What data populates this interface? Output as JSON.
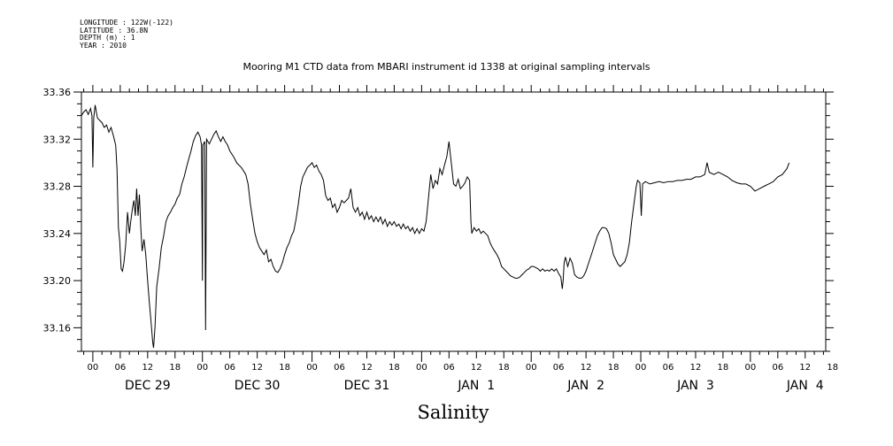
{
  "meta_lines": [
    "LONGITUDE : 122W(-122)",
    "LATITUDE : 36.8N",
    "DEPTH (m) : 1",
    "YEAR : 2010"
  ],
  "chart_data": {
    "type": "line",
    "title": "Mooring M1 CTD data from MBARI instrument id 1338 at original sampling intervals",
    "xlabel": "Salinity",
    "ylabel": "",
    "ylim": [
      33.14,
      33.36
    ],
    "xlim_hours": [
      -2.5,
      160.5
    ],
    "yticks": [
      "33.36",
      "33.32",
      "33.28",
      "33.24",
      "33.20",
      "33.16"
    ],
    "ytick_values": [
      33.36,
      33.32,
      33.28,
      33.24,
      33.2,
      33.16
    ],
    "x_hour_ticks": [
      "00",
      "06",
      "12",
      "18",
      "00",
      "06",
      "12",
      "18",
      "00",
      "06",
      "12",
      "18",
      "00",
      "06",
      "12",
      "18",
      "00",
      "06",
      "12",
      "18",
      "00",
      "06",
      "12",
      "18",
      "00",
      "06",
      "12",
      "18"
    ],
    "x_day_labels": [
      "DEC 29",
      "DEC 30",
      "DEC 31",
      "JAN  1",
      "JAN  2",
      "JAN  3",
      "JAN  4"
    ],
    "grid": false,
    "series": [
      {
        "points": [
          [
            -2.5,
            33.34
          ],
          [
            -2.0,
            33.343
          ],
          [
            -1.5,
            33.345
          ],
          [
            -1.0,
            33.341
          ],
          [
            -0.5,
            33.346
          ],
          [
            -0.2,
            33.34
          ],
          [
            0,
            33.296
          ],
          [
            0.2,
            33.338
          ],
          [
            0.5,
            33.349
          ],
          [
            1.0,
            33.338
          ],
          [
            1.5,
            33.336
          ],
          [
            2.0,
            33.334
          ],
          [
            2.5,
            33.33
          ],
          [
            3.0,
            33.332
          ],
          [
            3.5,
            33.326
          ],
          [
            4.0,
            33.33
          ],
          [
            4.5,
            33.323
          ],
          [
            5.0,
            33.315
          ],
          [
            5.3,
            33.295
          ],
          [
            5.6,
            33.245
          ],
          [
            5.9,
            33.233
          ],
          [
            6.2,
            33.21
          ],
          [
            6.5,
            33.208
          ],
          [
            6.8,
            33.215
          ],
          [
            7.2,
            33.23
          ],
          [
            7.6,
            33.258
          ],
          [
            8.0,
            33.24
          ],
          [
            8.3,
            33.25
          ],
          [
            8.7,
            33.262
          ],
          [
            9.0,
            33.268
          ],
          [
            9.3,
            33.255
          ],
          [
            9.6,
            33.278
          ],
          [
            9.9,
            33.255
          ],
          [
            10.2,
            33.273
          ],
          [
            10.5,
            33.245
          ],
          [
            10.8,
            33.225
          ],
          [
            11.2,
            33.235
          ],
          [
            11.6,
            33.222
          ],
          [
            12.0,
            33.2
          ],
          [
            12.4,
            33.18
          ],
          [
            12.8,
            33.163
          ],
          [
            13.1,
            33.148
          ],
          [
            13.3,
            33.143
          ],
          [
            13.6,
            33.16
          ],
          [
            14.0,
            33.195
          ],
          [
            14.5,
            33.21
          ],
          [
            15.0,
            33.228
          ],
          [
            15.5,
            33.238
          ],
          [
            16.0,
            33.25
          ],
          [
            16.5,
            33.255
          ],
          [
            17.0,
            33.258
          ],
          [
            17.5,
            33.262
          ],
          [
            18.0,
            33.265
          ],
          [
            18.5,
            33.27
          ],
          [
            19.0,
            33.273
          ],
          [
            19.5,
            33.282
          ],
          [
            20.0,
            33.288
          ],
          [
            20.5,
            33.296
          ],
          [
            21.0,
            33.303
          ],
          [
            21.5,
            33.31
          ],
          [
            22.0,
            33.318
          ],
          [
            22.5,
            33.323
          ],
          [
            23.0,
            33.326
          ],
          [
            23.5,
            33.322
          ],
          [
            23.8,
            33.315
          ],
          [
            24.0,
            33.2
          ],
          [
            24.1,
            33.315
          ],
          [
            24.5,
            33.318
          ],
          [
            24.7,
            33.158
          ],
          [
            24.9,
            33.32
          ],
          [
            25.5,
            33.316
          ],
          [
            26.0,
            33.32
          ],
          [
            26.5,
            33.324
          ],
          [
            27.0,
            33.327
          ],
          [
            27.5,
            33.322
          ],
          [
            28.0,
            33.318
          ],
          [
            28.5,
            33.322
          ],
          [
            29.0,
            33.318
          ],
          [
            29.5,
            33.315
          ],
          [
            30.0,
            33.31
          ],
          [
            30.5,
            33.307
          ],
          [
            31.0,
            33.304
          ],
          [
            31.5,
            33.3
          ],
          [
            32.0,
            33.298
          ],
          [
            32.5,
            33.296
          ],
          [
            33.0,
            33.293
          ],
          [
            33.5,
            33.29
          ],
          [
            34.0,
            33.282
          ],
          [
            34.5,
            33.265
          ],
          [
            35.0,
            33.252
          ],
          [
            35.5,
            33.24
          ],
          [
            36.0,
            33.233
          ],
          [
            36.5,
            33.228
          ],
          [
            37.0,
            33.225
          ],
          [
            37.5,
            33.222
          ],
          [
            38.0,
            33.226
          ],
          [
            38.5,
            33.216
          ],
          [
            39.0,
            33.218
          ],
          [
            39.5,
            33.212
          ],
          [
            40.0,
            33.208
          ],
          [
            40.5,
            33.207
          ],
          [
            41.0,
            33.21
          ],
          [
            41.5,
            33.215
          ],
          [
            42.0,
            33.222
          ],
          [
            42.5,
            33.228
          ],
          [
            43.0,
            33.232
          ],
          [
            43.5,
            33.238
          ],
          [
            44.0,
            33.242
          ],
          [
            44.5,
            33.252
          ],
          [
            45.0,
            33.265
          ],
          [
            45.5,
            33.28
          ],
          [
            46.0,
            33.288
          ],
          [
            46.5,
            33.292
          ],
          [
            47.0,
            33.296
          ],
          [
            47.5,
            33.298
          ],
          [
            48.0,
            33.3
          ],
          [
            48.5,
            33.296
          ],
          [
            49.0,
            33.298
          ],
          [
            49.5,
            33.293
          ],
          [
            50.0,
            33.29
          ],
          [
            50.5,
            33.285
          ],
          [
            51.0,
            33.272
          ],
          [
            51.5,
            33.268
          ],
          [
            52.0,
            33.27
          ],
          [
            52.5,
            33.262
          ],
          [
            53.0,
            33.265
          ],
          [
            53.5,
            33.258
          ],
          [
            54.0,
            33.262
          ],
          [
            54.5,
            33.268
          ],
          [
            55.0,
            33.266
          ],
          [
            55.5,
            33.268
          ],
          [
            56.0,
            33.27
          ],
          [
            56.5,
            33.278
          ],
          [
            57.0,
            33.262
          ],
          [
            57.5,
            33.258
          ],
          [
            58.0,
            33.262
          ],
          [
            58.5,
            33.255
          ],
          [
            59.0,
            33.258
          ],
          [
            59.5,
            33.252
          ],
          [
            60.0,
            33.258
          ],
          [
            60.5,
            33.252
          ],
          [
            61.0,
            33.255
          ],
          [
            61.5,
            33.25
          ],
          [
            62.0,
            33.254
          ],
          [
            62.5,
            33.25
          ],
          [
            63.0,
            33.254
          ],
          [
            63.5,
            33.248
          ],
          [
            64.0,
            33.252
          ],
          [
            64.5,
            33.246
          ],
          [
            65.0,
            33.25
          ],
          [
            65.5,
            33.247
          ],
          [
            66.0,
            33.25
          ],
          [
            66.5,
            33.246
          ],
          [
            67.0,
            33.248
          ],
          [
            67.5,
            33.244
          ],
          [
            68.0,
            33.248
          ],
          [
            68.5,
            33.244
          ],
          [
            69.0,
            33.246
          ],
          [
            69.5,
            33.242
          ],
          [
            70.0,
            33.245
          ],
          [
            70.5,
            33.24
          ],
          [
            71.0,
            33.244
          ],
          [
            71.5,
            33.24
          ],
          [
            72.0,
            33.244
          ],
          [
            72.5,
            33.242
          ],
          [
            73.0,
            33.25
          ],
          [
            73.5,
            33.27
          ],
          [
            74.0,
            33.29
          ],
          [
            74.5,
            33.278
          ],
          [
            75.0,
            33.285
          ],
          [
            75.5,
            33.282
          ],
          [
            76.0,
            33.295
          ],
          [
            76.5,
            33.29
          ],
          [
            77.0,
            33.298
          ],
          [
            77.5,
            33.305
          ],
          [
            78.0,
            33.318
          ],
          [
            78.5,
            33.3
          ],
          [
            79.0,
            33.282
          ],
          [
            79.5,
            33.28
          ],
          [
            80.0,
            33.286
          ],
          [
            80.5,
            33.278
          ],
          [
            81.0,
            33.28
          ],
          [
            81.5,
            33.283
          ],
          [
            82.0,
            33.288
          ],
          [
            82.5,
            33.285
          ],
          [
            82.8,
            33.25
          ],
          [
            83.0,
            33.24
          ],
          [
            83.5,
            33.245
          ],
          [
            84.0,
            33.242
          ],
          [
            84.5,
            33.244
          ],
          [
            85.0,
            33.24
          ],
          [
            85.5,
            33.242
          ],
          [
            86.0,
            33.24
          ],
          [
            86.5,
            33.238
          ],
          [
            87.0,
            33.232
          ],
          [
            87.5,
            33.228
          ],
          [
            88.0,
            33.225
          ],
          [
            88.5,
            33.222
          ],
          [
            89.0,
            33.218
          ],
          [
            89.5,
            33.212
          ],
          [
            90.0,
            33.21
          ],
          [
            90.5,
            33.208
          ],
          [
            91.0,
            33.206
          ],
          [
            91.5,
            33.204
          ],
          [
            92.0,
            33.203
          ],
          [
            92.5,
            33.202
          ],
          [
            93.0,
            33.202
          ],
          [
            93.5,
            33.203
          ],
          [
            94.0,
            33.205
          ],
          [
            94.5,
            33.207
          ],
          [
            95.0,
            33.209
          ],
          [
            95.5,
            33.21
          ],
          [
            96.0,
            33.212
          ],
          [
            96.5,
            33.212
          ],
          [
            97.0,
            33.211
          ],
          [
            97.5,
            33.21
          ],
          [
            98.0,
            33.208
          ],
          [
            98.5,
            33.21
          ],
          [
            99.0,
            33.208
          ],
          [
            99.5,
            33.209
          ],
          [
            100.0,
            33.208
          ],
          [
            100.5,
            33.21
          ],
          [
            101.0,
            33.208
          ],
          [
            101.5,
            33.21
          ],
          [
            102.0,
            33.206
          ],
          [
            102.5,
            33.203
          ],
          [
            102.8,
            33.193
          ],
          [
            103.0,
            33.2
          ],
          [
            103.2,
            33.215
          ],
          [
            103.5,
            33.22
          ],
          [
            104.0,
            33.212
          ],
          [
            104.5,
            33.219
          ],
          [
            105.0,
            33.215
          ],
          [
            105.5,
            33.205
          ],
          [
            106.0,
            33.203
          ],
          [
            106.5,
            33.202
          ],
          [
            107.0,
            33.202
          ],
          [
            107.5,
            33.204
          ],
          [
            108.0,
            33.208
          ],
          [
            108.5,
            33.214
          ],
          [
            109.0,
            33.22
          ],
          [
            109.5,
            33.226
          ],
          [
            110.0,
            33.232
          ],
          [
            110.5,
            33.238
          ],
          [
            111.0,
            33.242
          ],
          [
            111.5,
            33.245
          ],
          [
            112.0,
            33.245
          ],
          [
            112.5,
            33.244
          ],
          [
            113.0,
            33.24
          ],
          [
            113.5,
            33.232
          ],
          [
            114.0,
            33.222
          ],
          [
            114.5,
            33.218
          ],
          [
            115.0,
            33.214
          ],
          [
            115.5,
            33.212
          ],
          [
            116.0,
            33.214
          ],
          [
            116.5,
            33.216
          ],
          [
            117.0,
            33.222
          ],
          [
            117.5,
            33.232
          ],
          [
            118.0,
            33.25
          ],
          [
            118.5,
            33.265
          ],
          [
            119.0,
            33.28
          ],
          [
            119.3,
            33.285
          ],
          [
            119.8,
            33.283
          ],
          [
            120.1,
            33.255
          ],
          [
            120.4,
            33.282
          ],
          [
            121.0,
            33.284
          ],
          [
            122.0,
            33.282
          ],
          [
            123.0,
            33.283
          ],
          [
            124.0,
            33.284
          ],
          [
            125.0,
            33.283
          ],
          [
            126.0,
            33.284
          ],
          [
            127.0,
            33.284
          ],
          [
            128.0,
            33.285
          ],
          [
            129.0,
            33.285
          ],
          [
            130.0,
            33.286
          ],
          [
            131.0,
            33.286
          ],
          [
            132.0,
            33.288
          ],
          [
            133.0,
            33.288
          ],
          [
            134.0,
            33.29
          ],
          [
            134.5,
            33.3
          ],
          [
            135.0,
            33.292
          ],
          [
            136.0,
            33.29
          ],
          [
            137.0,
            33.292
          ],
          [
            138.0,
            33.29
          ],
          [
            139.0,
            33.288
          ],
          [
            140.0,
            33.285
          ],
          [
            141.0,
            33.283
          ],
          [
            142.0,
            33.282
          ],
          [
            143.0,
            33.282
          ],
          [
            144.0,
            33.28
          ],
          [
            145.0,
            33.276
          ],
          [
            146.0,
            33.278
          ],
          [
            147.0,
            33.28
          ],
          [
            148.0,
            33.282
          ],
          [
            149.0,
            33.284
          ],
          [
            150.0,
            33.288
          ],
          [
            151.0,
            33.29
          ],
          [
            152.0,
            33.295
          ],
          [
            152.5,
            33.3
          ]
        ]
      }
    ]
  }
}
